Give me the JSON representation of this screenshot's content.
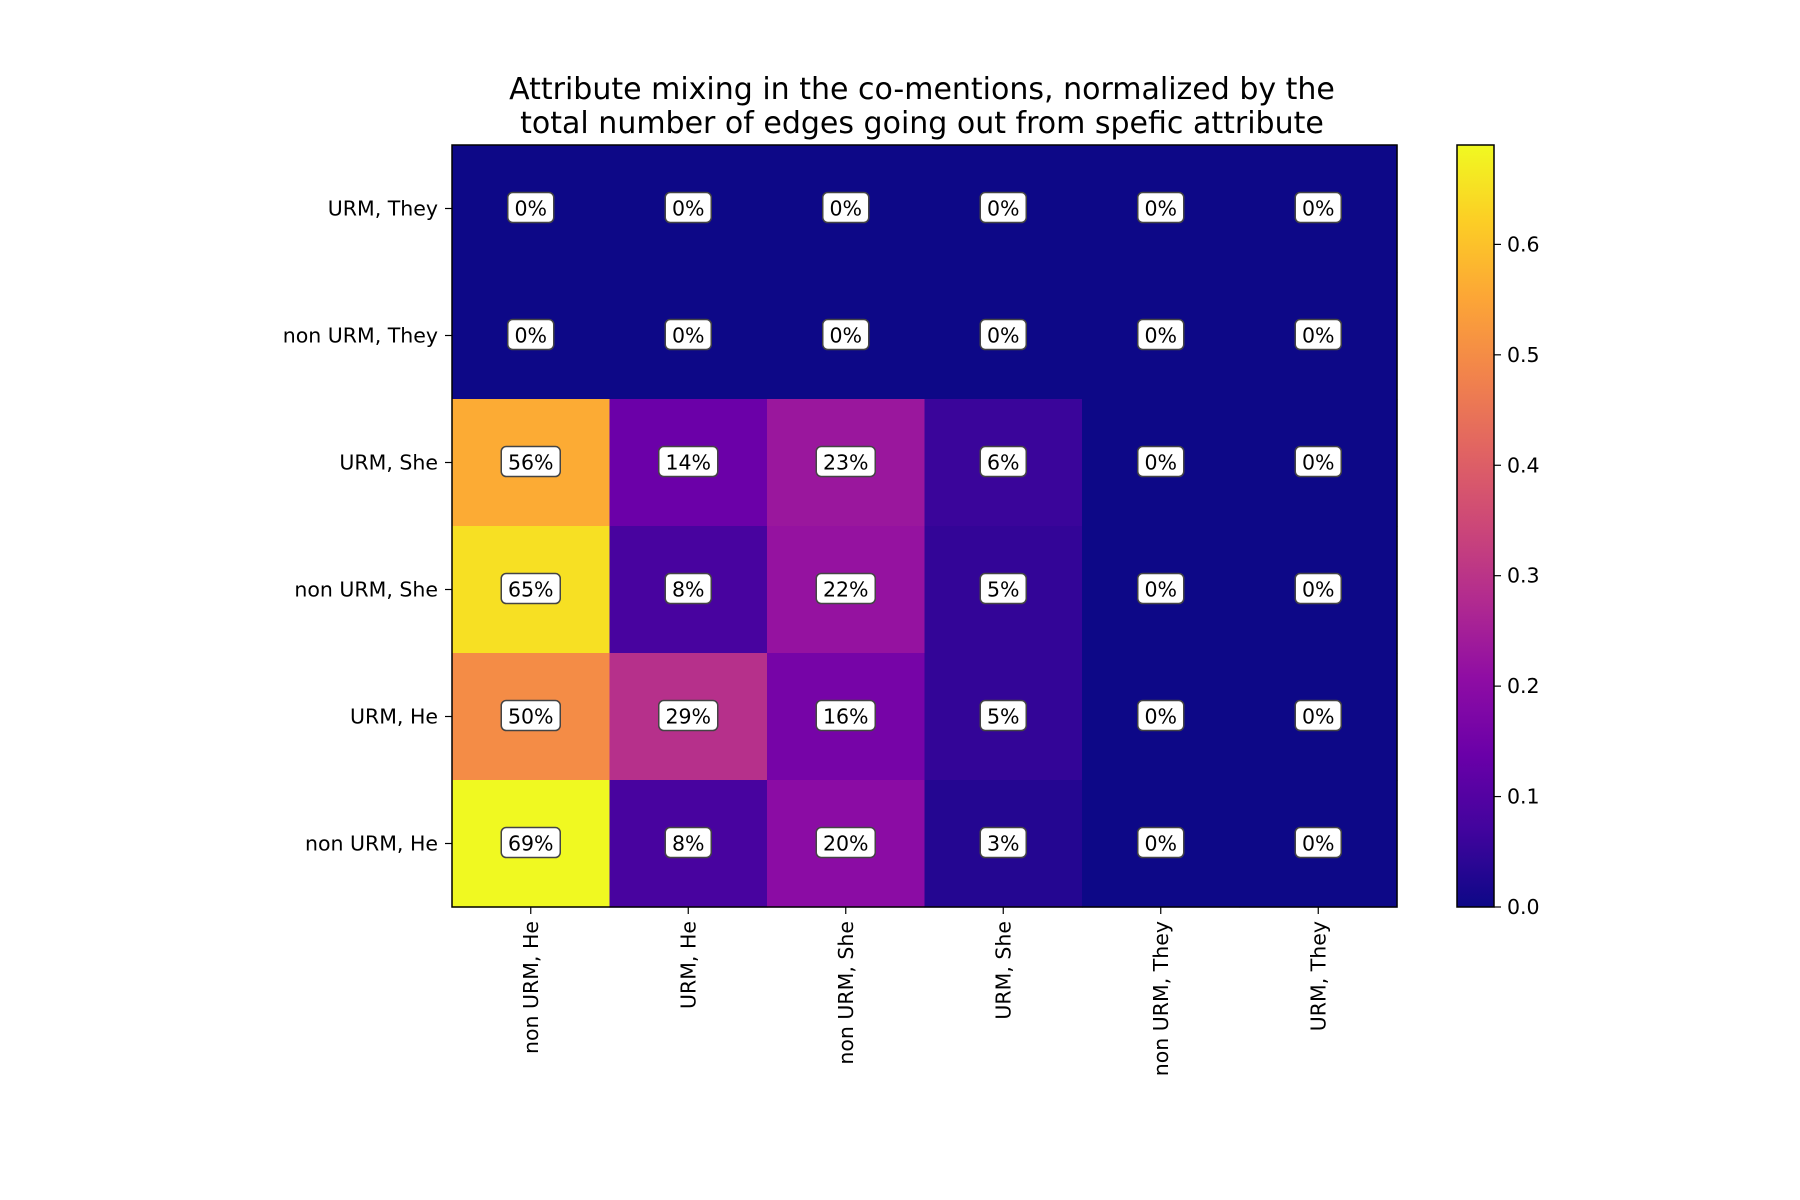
{
  "chart_data": {
    "type": "heatmap",
    "title_lines": [
      "Attribute mixing in the co-mentions, normalized by the",
      "total number of edges going out from spefic attribute"
    ],
    "xlabel": "",
    "ylabel": "",
    "x_categories": [
      "non URM, He",
      "URM, He",
      "non URM, She",
      "URM, She",
      "non URM, They",
      "URM, They"
    ],
    "y_categories": [
      "URM, They",
      "non URM, They",
      "URM, She",
      "non URM, She",
      "URM, He",
      "non URM, He"
    ],
    "values": [
      [
        0.0,
        0.0,
        0.0,
        0.0,
        0.0,
        0.0
      ],
      [
        0.0,
        0.0,
        0.0,
        0.0,
        0.0,
        0.0
      ],
      [
        0.56,
        0.14,
        0.23,
        0.06,
        0.0,
        0.0
      ],
      [
        0.65,
        0.08,
        0.22,
        0.05,
        0.0,
        0.0
      ],
      [
        0.5,
        0.29,
        0.16,
        0.05,
        0.0,
        0.0
      ],
      [
        0.69,
        0.08,
        0.2,
        0.03,
        0.0,
        0.0
      ]
    ],
    "cell_labels": [
      [
        "0%",
        "0%",
        "0%",
        "0%",
        "0%",
        "0%"
      ],
      [
        "0%",
        "0%",
        "0%",
        "0%",
        "0%",
        "0%"
      ],
      [
        "56%",
        "14%",
        "23%",
        "6%",
        "0%",
        "0%"
      ],
      [
        "65%",
        "8%",
        "22%",
        "5%",
        "0%",
        "0%"
      ],
      [
        "50%",
        "29%",
        "16%",
        "5%",
        "0%",
        "0%"
      ],
      [
        "69%",
        "8%",
        "20%",
        "3%",
        "0%",
        "0%"
      ]
    ],
    "colormap": "plasma",
    "colorbar": {
      "range": [
        0,
        0.69
      ],
      "ticks": [
        0.0,
        0.1,
        0.2,
        0.3,
        0.4,
        0.5,
        0.6
      ],
      "tick_labels": [
        "0.0",
        "0.1",
        "0.2",
        "0.3",
        "0.4",
        "0.5",
        "0.6"
      ]
    },
    "grid": false,
    "legend": "none"
  }
}
